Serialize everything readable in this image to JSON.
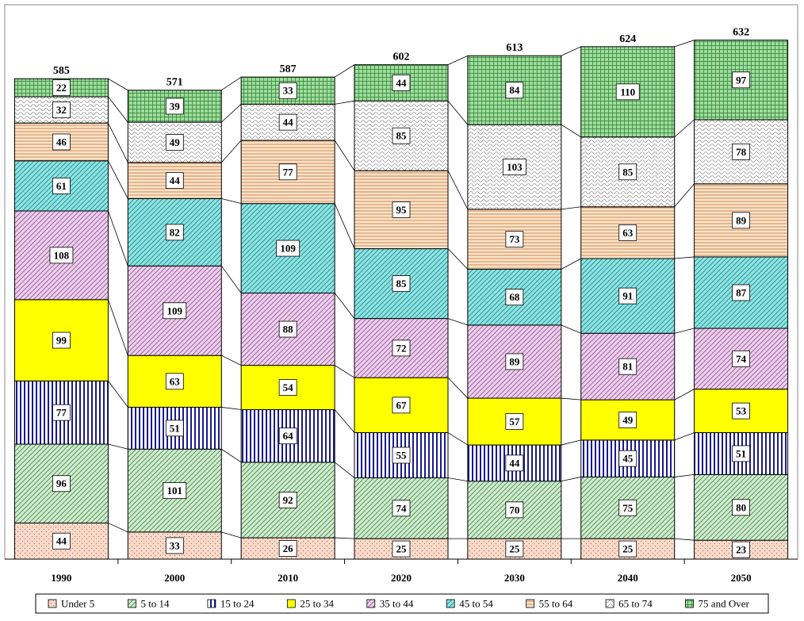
{
  "chart_data": {
    "type": "bar",
    "stacked": true,
    "categories": [
      "1990",
      "2000",
      "2010",
      "2020",
      "2030",
      "2040",
      "2050"
    ],
    "totals": [
      585,
      571,
      587,
      602,
      613,
      624,
      632
    ],
    "series": [
      {
        "name": "Under 5",
        "color": "#f7d9c8",
        "pattern": "dots",
        "values": [
          44,
          33,
          26,
          25,
          25,
          25,
          23
        ]
      },
      {
        "name": "5 to 14",
        "color": "#c6f0c6",
        "pattern": "diag",
        "values": [
          96,
          101,
          92,
          74,
          70,
          75,
          80
        ]
      },
      {
        "name": "15 to 24",
        "color": "#ffffff",
        "pattern": "vert",
        "values": [
          77,
          51,
          64,
          55,
          44,
          45,
          51
        ]
      },
      {
        "name": "25 to 34",
        "color": "#ffff00",
        "pattern": "solid",
        "values": [
          99,
          63,
          54,
          67,
          57,
          49,
          53
        ]
      },
      {
        "name": "35 to 44",
        "color": "#f4c8f4",
        "pattern": "diag",
        "values": [
          108,
          109,
          88,
          72,
          89,
          81,
          74
        ]
      },
      {
        "name": "45 to 54",
        "color": "#7fe8e8",
        "pattern": "diag",
        "values": [
          61,
          82,
          109,
          85,
          68,
          91,
          87
        ]
      },
      {
        "name": "55 to 64",
        "color": "#fde4c8",
        "pattern": "horiz",
        "values": [
          46,
          44,
          77,
          95,
          73,
          63,
          89
        ]
      },
      {
        "name": "65 to 74",
        "color": "#ffffff",
        "pattern": "wave",
        "values": [
          32,
          49,
          44,
          85,
          103,
          85,
          78
        ]
      },
      {
        "name": "75 and Over",
        "color": "#9ddc9d",
        "pattern": "grid",
        "values": [
          22,
          39,
          33,
          44,
          84,
          110,
          97
        ]
      }
    ],
    "grid": false,
    "legend": "bottom"
  }
}
